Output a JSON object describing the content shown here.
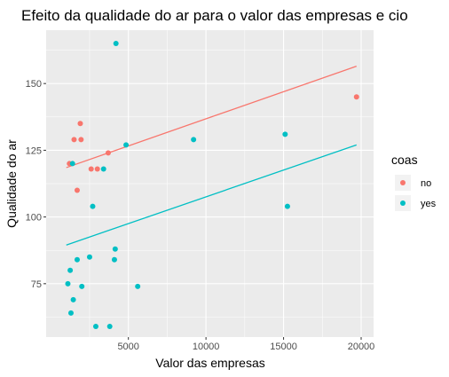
{
  "chart_data": {
    "type": "scatter",
    "title": "Efeito da qualidade do ar para o valor das empresas e cio",
    "xlabel": "Valor das empresas",
    "ylabel": "Qualidade do ar",
    "xlim": [
      -300,
      20800
    ],
    "ylim": [
      55,
      170
    ],
    "x_ticks": [
      5000,
      10000,
      15000,
      20000
    ],
    "x_tick_labels": [
      "5000",
      "10000",
      "15000",
      "20000"
    ],
    "y_ticks": [
      75,
      100,
      125,
      150
    ],
    "y_tick_labels": [
      "75",
      "100",
      "125",
      "150"
    ],
    "grid": true,
    "legend": {
      "title": "coas",
      "position": "right"
    },
    "series": [
      {
        "name": "no",
        "color": "#F8766D",
        "points": [
          {
            "x": 1200,
            "y": 120
          },
          {
            "x": 1500,
            "y": 129
          },
          {
            "x": 1700,
            "y": 110
          },
          {
            "x": 1900,
            "y": 135
          },
          {
            "x": 1950,
            "y": 129
          },
          {
            "x": 2600,
            "y": 118
          },
          {
            "x": 3000,
            "y": 118
          },
          {
            "x": 3700,
            "y": 124
          },
          {
            "x": 19700,
            "y": 145
          }
        ],
        "fit": {
          "x": [
            1000,
            19700
          ],
          "y": [
            118.5,
            156.5
          ]
        }
      },
      {
        "name": "yes",
        "color": "#00BFC4",
        "points": [
          {
            "x": 1100,
            "y": 75
          },
          {
            "x": 1250,
            "y": 80
          },
          {
            "x": 1300,
            "y": 64
          },
          {
            "x": 1400,
            "y": 120
          },
          {
            "x": 1450,
            "y": 69
          },
          {
            "x": 1700,
            "y": 84
          },
          {
            "x": 2000,
            "y": 74
          },
          {
            "x": 2500,
            "y": 85
          },
          {
            "x": 2700,
            "y": 104
          },
          {
            "x": 2900,
            "y": 59
          },
          {
            "x": 3400,
            "y": 118
          },
          {
            "x": 3800,
            "y": 59
          },
          {
            "x": 4100,
            "y": 84
          },
          {
            "x": 4150,
            "y": 88
          },
          {
            "x": 4200,
            "y": 165
          },
          {
            "x": 4850,
            "y": 127
          },
          {
            "x": 5600,
            "y": 74
          },
          {
            "x": 9200,
            "y": 129
          },
          {
            "x": 15100,
            "y": 131
          },
          {
            "x": 15250,
            "y": 104
          }
        ],
        "fit": {
          "x": [
            1000,
            19700
          ],
          "y": [
            89.5,
            127
          ]
        }
      }
    ]
  }
}
